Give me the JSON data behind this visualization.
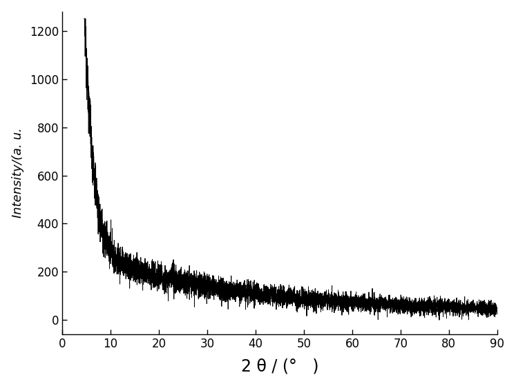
{
  "xlabel": "2 θ / (°   )",
  "ylabel": "Intensity/(a. u.",
  "xlim": [
    0,
    90
  ],
  "ylim": [
    -60,
    1280
  ],
  "xticks": [
    0,
    10,
    20,
    30,
    40,
    50,
    60,
    70,
    80,
    90
  ],
  "yticks": [
    0,
    200,
    400,
    600,
    800,
    1000,
    1200
  ],
  "line_color": "#000000",
  "line_width": 0.7,
  "background_color": "#ffffff",
  "xlabel_fontsize": 17,
  "ylabel_fontsize": 13,
  "tick_fontsize": 12,
  "seed": 12345
}
